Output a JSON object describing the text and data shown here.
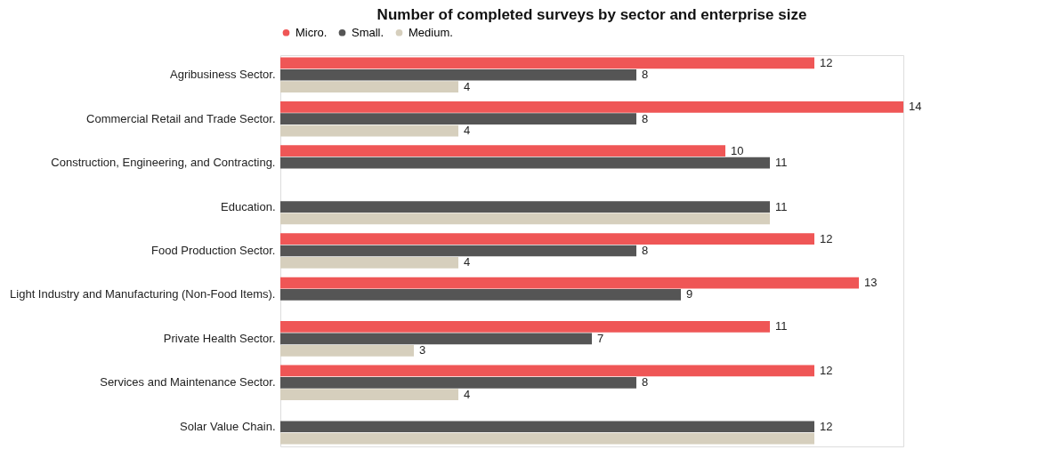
{
  "chart_data": {
    "type": "bar",
    "orientation": "horizontal",
    "title": "Number of completed surveys by sector and enterprise size",
    "legend": "top",
    "categories": [
      "Agribusiness Sector.",
      "Commercial Retail and Trade Sector.",
      "Construction, Engineering, and Contracting.",
      "Education.",
      "Food Production Sector.",
      "Light Industry and Manufacturing (Non-Food Items).",
      "Private Health Sector.",
      "Services and Maintenance Sector.",
      "Solar Value Chain."
    ],
    "series": [
      {
        "name": "Micro.",
        "color": "#ef5656",
        "values": [
          12,
          14,
          10,
          null,
          12,
          13,
          11,
          12,
          null
        ],
        "value_labels": [
          "12",
          "14",
          "10",
          null,
          "12",
          "13",
          "11",
          "12",
          null
        ]
      },
      {
        "name": "Small.",
        "color": "#555555",
        "values": [
          8,
          8,
          11,
          11,
          8,
          9,
          7,
          8,
          12
        ],
        "value_labels": [
          "8",
          "8",
          "11",
          "11",
          "8",
          "9",
          "7",
          "8",
          "12"
        ]
      },
      {
        "name": "Medium.",
        "color": "#d6cfbd",
        "values": [
          4,
          4,
          null,
          11,
          4,
          null,
          3,
          4,
          12
        ],
        "value_labels": [
          "4",
          "4",
          null,
          null,
          "4",
          null,
          "3",
          "4",
          null
        ]
      }
    ]
  }
}
